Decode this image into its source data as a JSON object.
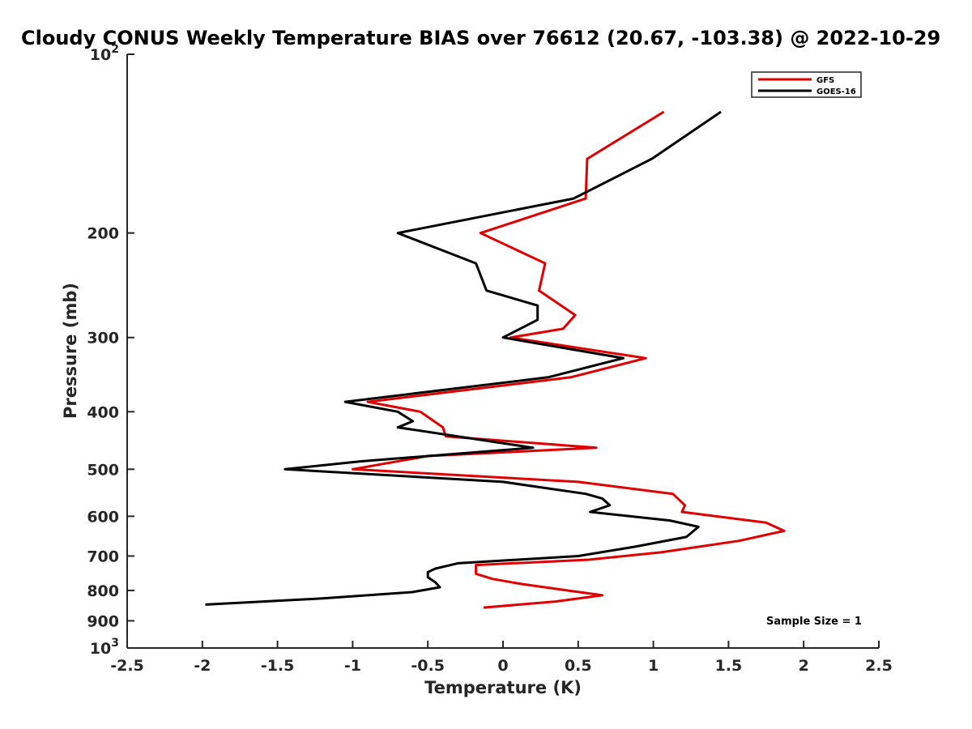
{
  "chart_data": {
    "type": "line",
    "title": "Cloudy CONUS Weekly Temperature BIAS over 76612 (20.67, -103.38) @ 2022-10-29",
    "xlabel": "Temperature (K)",
    "ylabel": "Pressure (mb)",
    "xlim": [
      -2.5,
      2.5
    ],
    "ylim": [
      100,
      1000
    ],
    "y_scale": "log",
    "y_reversed": true,
    "x_ticks": [
      "-2.5",
      "-2",
      "-1.5",
      "-1",
      "-0.5",
      "0",
      "0.5",
      "1",
      "1.5",
      "2",
      "2.5"
    ],
    "x_tick_values": [
      -2.5,
      -2,
      -1.5,
      -1,
      -0.5,
      0,
      0.5,
      1,
      1.5,
      2,
      2.5
    ],
    "y_ticks": [
      {
        "value": 100,
        "base": "10",
        "exp": "2"
      },
      {
        "value": 200,
        "label": "200"
      },
      {
        "value": 300,
        "label": "300"
      },
      {
        "value": 400,
        "label": "400"
      },
      {
        "value": 500,
        "label": "500"
      },
      {
        "value": 600,
        "label": "600"
      },
      {
        "value": 700,
        "label": "700"
      },
      {
        "value": 800,
        "label": "800"
      },
      {
        "value": 900,
        "label": "900"
      },
      {
        "value": 1000,
        "base": "10",
        "exp": "3"
      }
    ],
    "grid": false,
    "legend_position": "top-right",
    "annotation": "Sample Size = 1",
    "series": [
      {
        "name": "GFS",
        "color": "#e00000",
        "points": [
          [
            1.07,
            125
          ],
          [
            0.56,
            150
          ],
          [
            0.55,
            175
          ],
          [
            -0.15,
            200
          ],
          [
            0.28,
            225
          ],
          [
            0.24,
            250
          ],
          [
            0.48,
            275
          ],
          [
            0.4,
            290
          ],
          [
            0.05,
            300
          ],
          [
            0.95,
            325
          ],
          [
            0.45,
            350
          ],
          [
            -0.9,
            385
          ],
          [
            -0.55,
            400
          ],
          [
            -0.4,
            425
          ],
          [
            -0.38,
            440
          ],
          [
            0.62,
            460
          ],
          [
            -0.5,
            475
          ],
          [
            -1.0,
            500
          ],
          [
            0.5,
            525
          ],
          [
            1.13,
            550
          ],
          [
            1.21,
            575
          ],
          [
            1.19,
            590
          ],
          [
            1.75,
            615
          ],
          [
            1.87,
            635
          ],
          [
            1.57,
            660
          ],
          [
            1.05,
            690
          ],
          [
            0.57,
            710
          ],
          [
            -0.18,
            725
          ],
          [
            -0.18,
            750
          ],
          [
            -0.07,
            765
          ],
          [
            0.12,
            780
          ],
          [
            0.43,
            800
          ],
          [
            0.66,
            815
          ],
          [
            0.35,
            835
          ],
          [
            -0.13,
            855
          ]
        ]
      },
      {
        "name": "GOES-16",
        "color": "#000000",
        "points": [
          [
            1.45,
            125
          ],
          [
            0.99,
            150
          ],
          [
            0.47,
            175
          ],
          [
            -0.7,
            200
          ],
          [
            -0.18,
            225
          ],
          [
            -0.11,
            250
          ],
          [
            0.23,
            265
          ],
          [
            0.23,
            280
          ],
          [
            0.0,
            300
          ],
          [
            0.8,
            325
          ],
          [
            0.3,
            350
          ],
          [
            -1.05,
            385
          ],
          [
            -0.7,
            400
          ],
          [
            -0.6,
            415
          ],
          [
            -0.7,
            425
          ],
          [
            0.2,
            460
          ],
          [
            -0.95,
            485
          ],
          [
            -1.45,
            500
          ],
          [
            0.0,
            525
          ],
          [
            0.55,
            550
          ],
          [
            0.66,
            560
          ],
          [
            0.71,
            575
          ],
          [
            0.58,
            590
          ],
          [
            1.11,
            610
          ],
          [
            1.3,
            625
          ],
          [
            1.22,
            650
          ],
          [
            0.88,
            675
          ],
          [
            0.5,
            700
          ],
          [
            -0.3,
            720
          ],
          [
            -0.45,
            735
          ],
          [
            -0.5,
            745
          ],
          [
            -0.5,
            760
          ],
          [
            -0.45,
            775
          ],
          [
            -0.42,
            790
          ],
          [
            -0.6,
            805
          ],
          [
            -1.2,
            825
          ],
          [
            -1.98,
            845
          ]
        ]
      }
    ]
  }
}
